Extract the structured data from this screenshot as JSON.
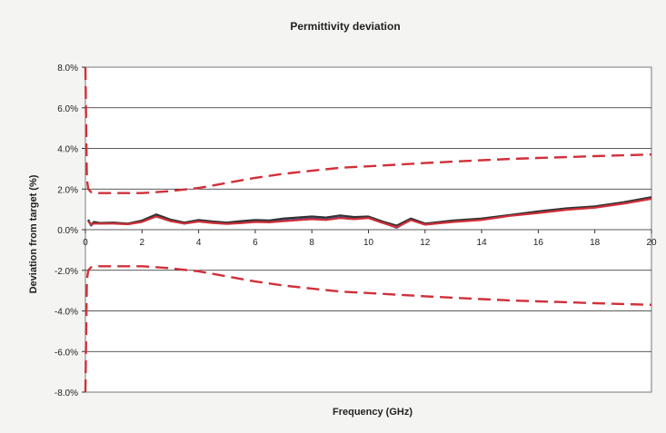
{
  "chart_data": {
    "type": "line",
    "title": "Permittivity deviation",
    "xlabel": "Frequency (GHz)",
    "ylabel": "Deviation from target (%)",
    "xlim": [
      0,
      20
    ],
    "ylim": [
      -8,
      8
    ],
    "x_ticks": [
      0,
      2,
      4,
      6,
      8,
      10,
      12,
      14,
      16,
      18,
      20
    ],
    "y_ticks": [
      8,
      6,
      4,
      2,
      0,
      -2,
      -4,
      -6,
      -8
    ],
    "y_tick_labels": [
      "8.0%",
      "6.0%",
      "4.0%",
      "2.0%",
      "0.0%",
      "-2.0%",
      "-4.0%",
      "-6.0%",
      "-8.0%"
    ],
    "grid": "horizontal",
    "legend": "none",
    "series": [
      {
        "color": "#d0303a",
        "style": "dashed",
        "x": [
          0.0,
          0.05,
          0.1,
          0.2,
          0.4,
          1,
          2,
          3,
          4,
          5,
          6,
          7,
          8,
          9,
          10,
          11,
          12,
          13,
          14,
          15,
          16,
          17,
          18,
          19,
          20
        ],
        "values": [
          8.0,
          2.5,
          2.0,
          1.85,
          1.8,
          1.8,
          1.8,
          1.9,
          2.05,
          2.3,
          2.55,
          2.75,
          2.9,
          3.05,
          3.12,
          3.2,
          3.28,
          3.35,
          3.42,
          3.48,
          3.53,
          3.57,
          3.62,
          3.66,
          3.7
        ]
      },
      {
        "color": "#d0303a",
        "style": "dashed",
        "x": [
          0.0,
          0.05,
          0.1,
          0.2,
          0.4,
          1,
          2,
          3,
          4,
          5,
          6,
          7,
          8,
          9,
          10,
          11,
          12,
          13,
          14,
          15,
          16,
          17,
          18,
          19,
          20
        ],
        "values": [
          -8.0,
          -2.5,
          -2.0,
          -1.85,
          -1.8,
          -1.8,
          -1.8,
          -1.9,
          -2.05,
          -2.3,
          -2.55,
          -2.75,
          -2.9,
          -3.05,
          -3.12,
          -3.2,
          -3.28,
          -3.35,
          -3.42,
          -3.48,
          -3.53,
          -3.57,
          -3.62,
          -3.66,
          -3.7
        ]
      },
      {
        "color": "#2f3f96",
        "style": "solid",
        "x": [
          0.1,
          0.2,
          0.3,
          0.5,
          1,
          1.5,
          2,
          2.5,
          3,
          3.5,
          4,
          4.5,
          5,
          5.5,
          6,
          6.5,
          7,
          7.5,
          8,
          8.5,
          9,
          9.5,
          10,
          10.5,
          11,
          11.5,
          12,
          13,
          14,
          15,
          16,
          17,
          18,
          19,
          20
        ],
        "values": [
          0.5,
          0.2,
          0.35,
          0.3,
          0.32,
          0.28,
          0.4,
          0.7,
          0.45,
          0.3,
          0.42,
          0.35,
          0.3,
          0.35,
          0.4,
          0.38,
          0.45,
          0.5,
          0.55,
          0.5,
          0.6,
          0.55,
          0.6,
          0.35,
          0.1,
          0.5,
          0.25,
          0.4,
          0.5,
          0.7,
          0.85,
          1.0,
          1.1,
          1.3,
          1.55
        ]
      },
      {
        "color": "#333333",
        "style": "solid",
        "x": [
          0.1,
          0.2,
          0.3,
          0.5,
          1,
          1.5,
          2,
          2.5,
          3,
          3.5,
          4,
          4.5,
          5,
          5.5,
          6,
          6.5,
          7,
          7.5,
          8,
          8.5,
          9,
          9.5,
          10,
          10.5,
          11,
          11.5,
          12,
          13,
          14,
          15,
          16,
          17,
          18,
          19,
          20
        ],
        "values": [
          0.45,
          0.25,
          0.38,
          0.33,
          0.35,
          0.3,
          0.45,
          0.75,
          0.5,
          0.35,
          0.48,
          0.4,
          0.35,
          0.42,
          0.48,
          0.45,
          0.55,
          0.6,
          0.65,
          0.6,
          0.7,
          0.62,
          0.65,
          0.4,
          0.2,
          0.55,
          0.3,
          0.45,
          0.55,
          0.72,
          0.9,
          1.05,
          1.15,
          1.35,
          1.6
        ]
      },
      {
        "color": "#d0303a",
        "style": "solid",
        "x": [
          0.1,
          0.2,
          0.3,
          0.5,
          1,
          1.5,
          2,
          2.5,
          3,
          3.5,
          4,
          4.5,
          5,
          5.5,
          6,
          6.5,
          7,
          7.5,
          8,
          8.5,
          9,
          9.5,
          10,
          10.5,
          11,
          11.5,
          12,
          13,
          14,
          15,
          16,
          17,
          18,
          19,
          20
        ],
        "values": [
          0.4,
          0.25,
          0.3,
          0.3,
          0.3,
          0.27,
          0.38,
          0.65,
          0.42,
          0.3,
          0.4,
          0.33,
          0.28,
          0.32,
          0.38,
          0.36,
          0.42,
          0.47,
          0.52,
          0.48,
          0.57,
          0.52,
          0.57,
          0.33,
          0.12,
          0.47,
          0.25,
          0.38,
          0.48,
          0.68,
          0.82,
          0.98,
          1.08,
          1.28,
          1.52
        ]
      }
    ]
  }
}
